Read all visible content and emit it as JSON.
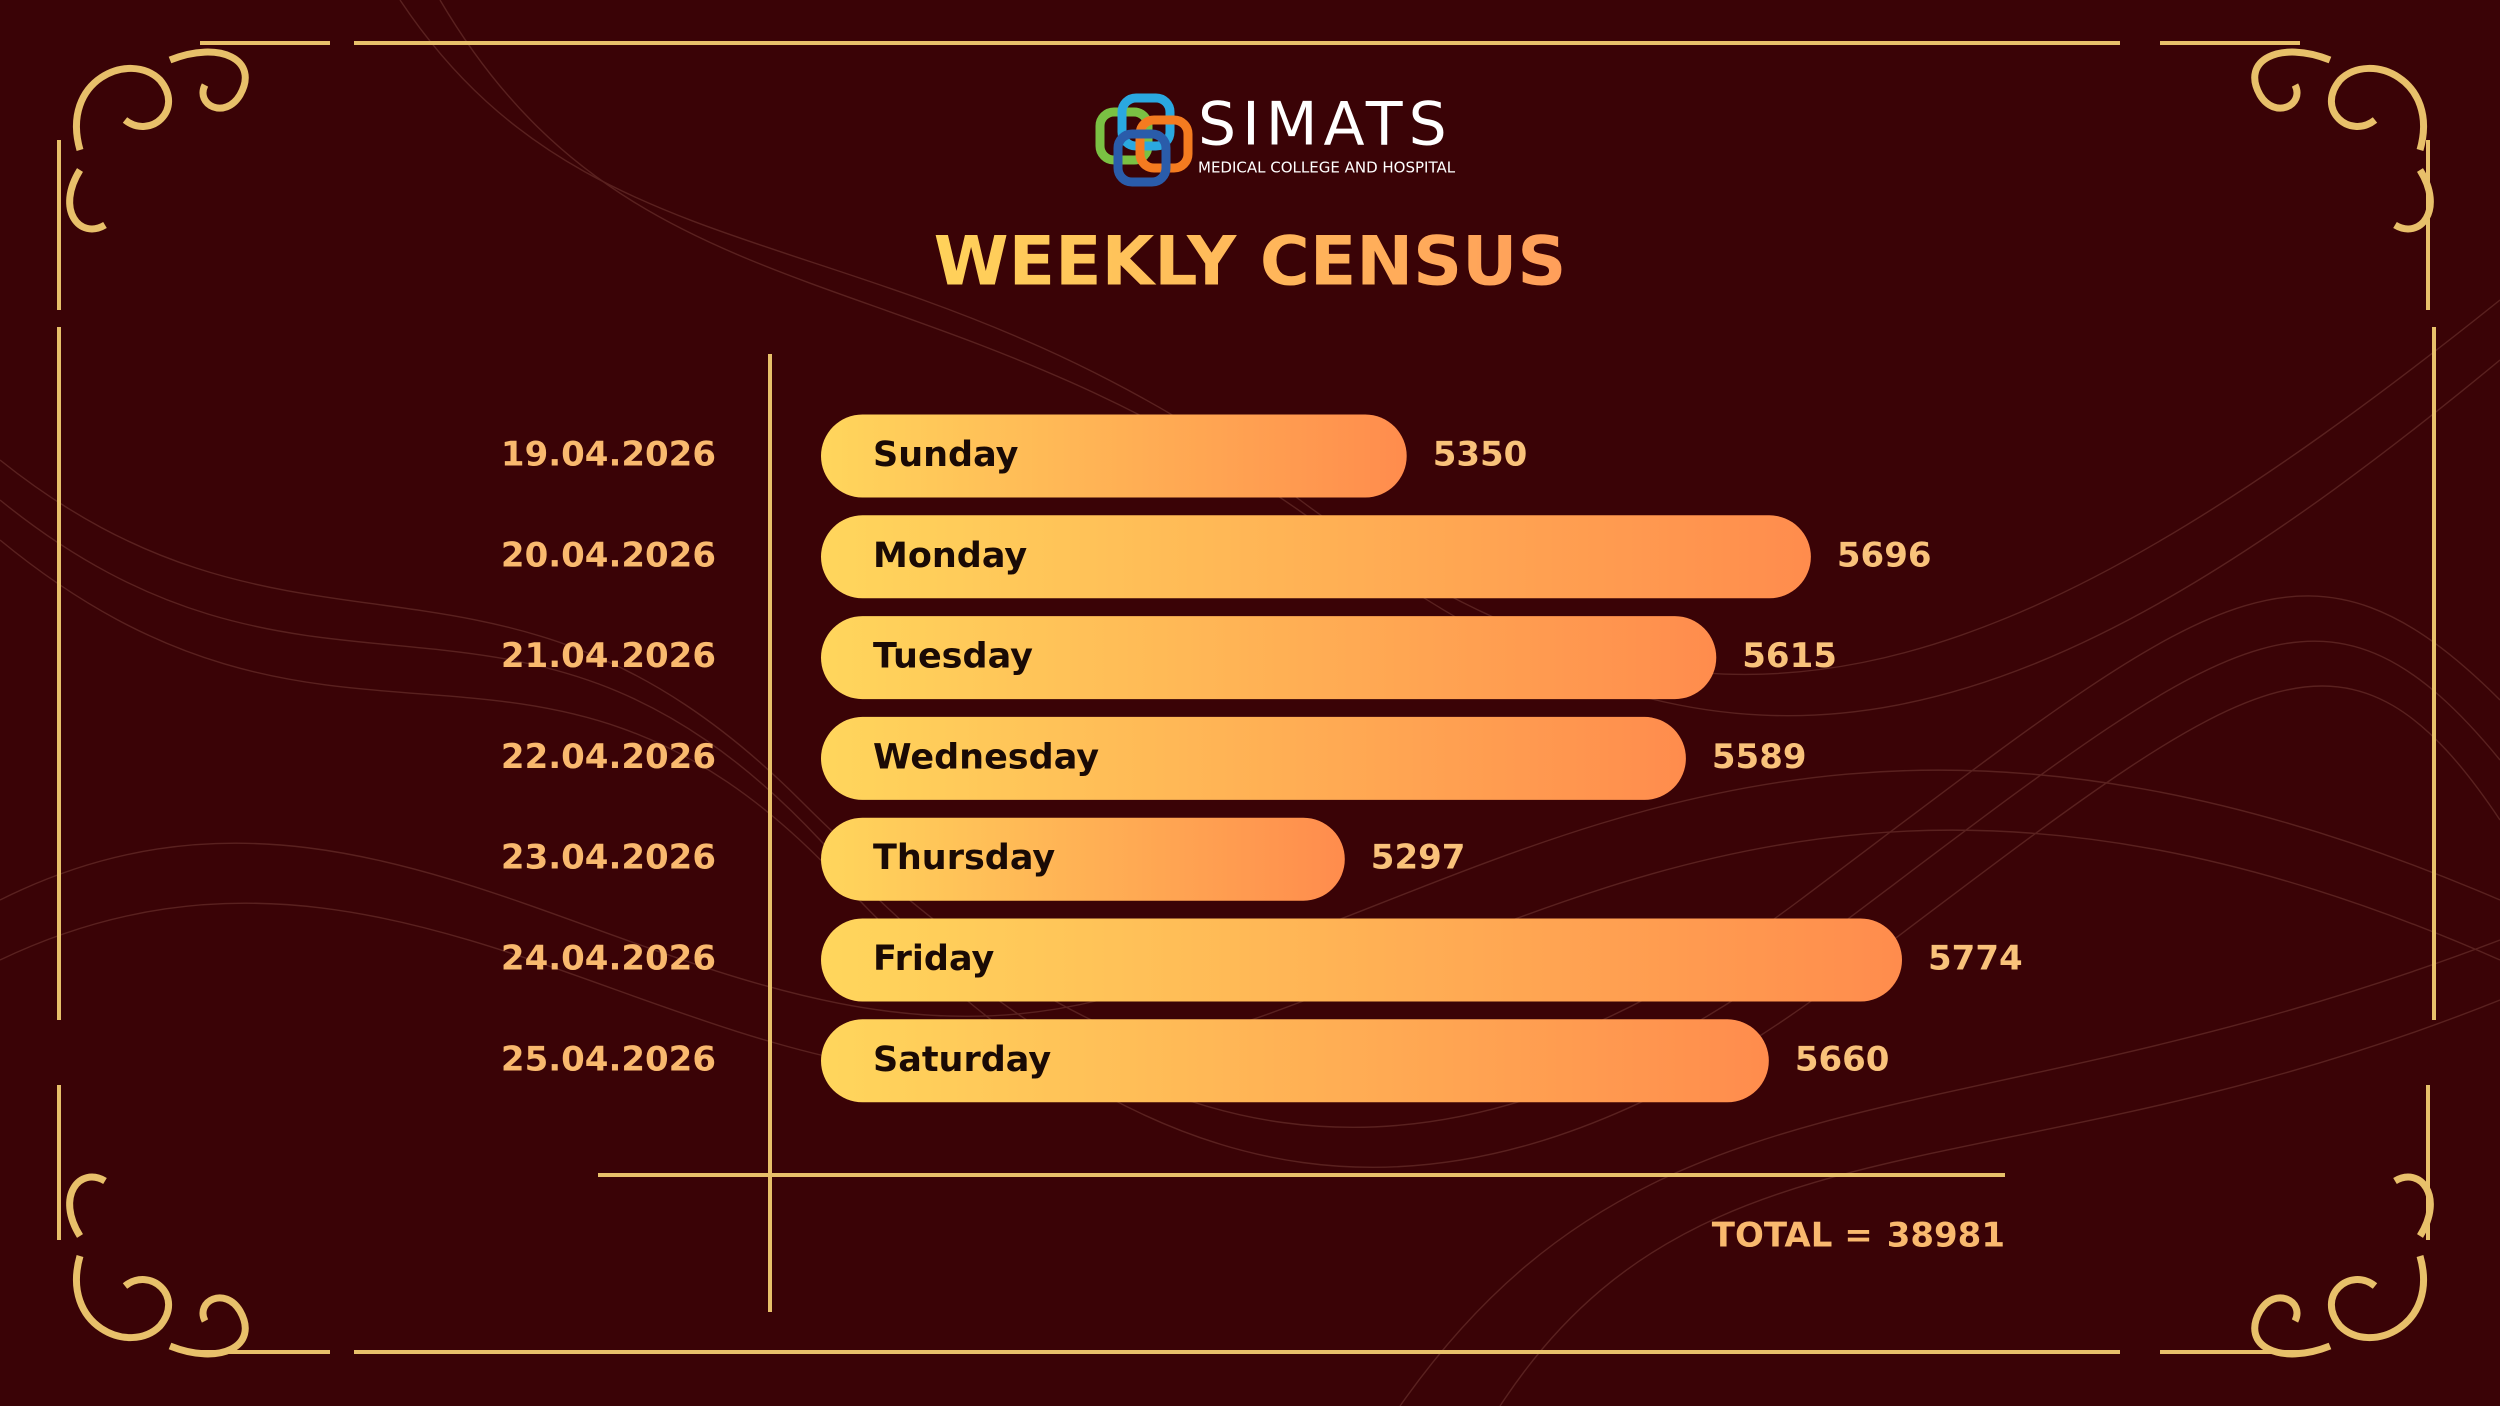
{
  "logo": {
    "name": "SIMATS",
    "subtitle": "MEDICAL COLLEGE AND HOSPITAL"
  },
  "chart_data": {
    "type": "bar",
    "title": "WEEKLY CENSUS",
    "categories": [
      "Sunday",
      "Monday",
      "Tuesday",
      "Wednesday",
      "Thursday",
      "Friday",
      "Saturday"
    ],
    "dates": [
      "19.04.2026",
      "20.04.2026",
      "21.04.2026",
      "22.04.2026",
      "23.04.2026",
      "24.04.2026",
      "25.04.2026"
    ],
    "values": [
      5350,
      5696,
      5615,
      5589,
      5297,
      5774,
      5660
    ],
    "color": [
      "#ffd65c",
      "#ff8c4d"
    ],
    "total_label": "TOTAL =",
    "total": 38981
  }
}
